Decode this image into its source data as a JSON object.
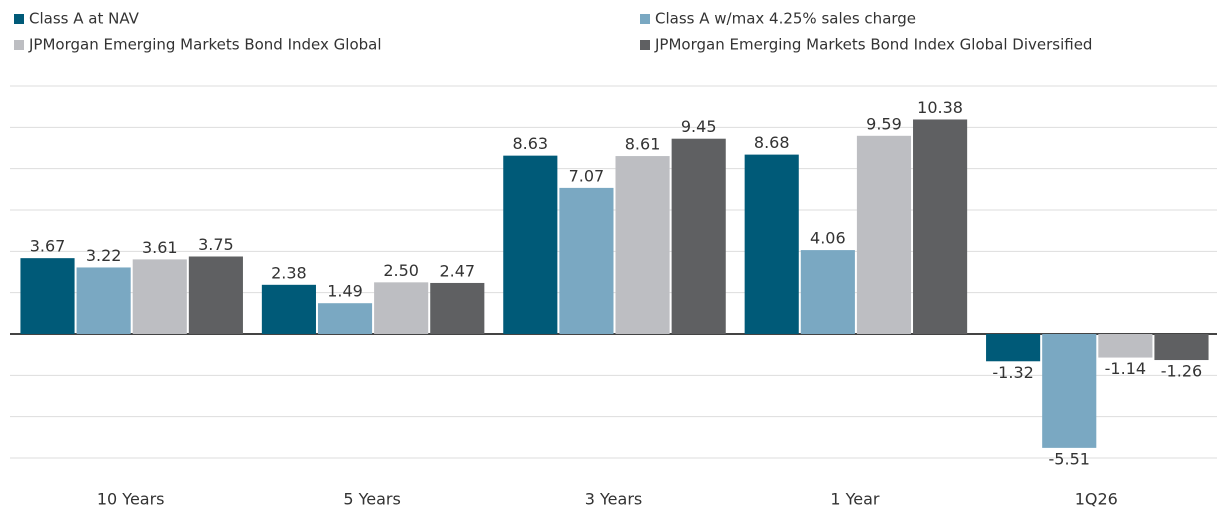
{
  "chart_data": {
    "type": "bar",
    "categories": [
      "10 Years",
      "5 Years",
      "3 Years",
      "1 Year",
      "1Q26"
    ],
    "series": [
      {
        "name": "Class A at NAV",
        "color": "#005a78",
        "values": [
          3.67,
          2.38,
          8.63,
          8.68,
          -1.32
        ],
        "value_labels": [
          "3.67",
          "2.38",
          "8.63",
          "8.68",
          "-1.32"
        ]
      },
      {
        "name": "Class A w/max 4.25% sales charge",
        "color": "#7aa8c2",
        "values": [
          3.22,
          1.49,
          7.07,
          4.06,
          -5.51
        ],
        "value_labels": [
          "3.22",
          "1.49",
          "7.07",
          "4.06",
          "-5.51"
        ]
      },
      {
        "name": "JPMorgan Emerging Markets Bond Index Global",
        "color": "#bdbec2",
        "values": [
          3.61,
          2.5,
          8.61,
          9.59,
          -1.14
        ],
        "value_labels": [
          "3.61",
          "2.50",
          "8.61",
          "9.59",
          "-1.14"
        ]
      },
      {
        "name": "JPMorgan Emerging Markets Bond Index Global Diversified",
        "color": "#5f6062",
        "values": [
          3.75,
          2.47,
          9.45,
          10.38,
          -1.26
        ],
        "value_labels": [
          "3.75",
          "2.47",
          "9.45",
          "10.38",
          "-1.26"
        ]
      }
    ],
    "ylim": [
      -6,
      12
    ],
    "yticks": [
      -6,
      -4,
      -2,
      0,
      2,
      4,
      6,
      8,
      10,
      12
    ],
    "grid": true
  }
}
